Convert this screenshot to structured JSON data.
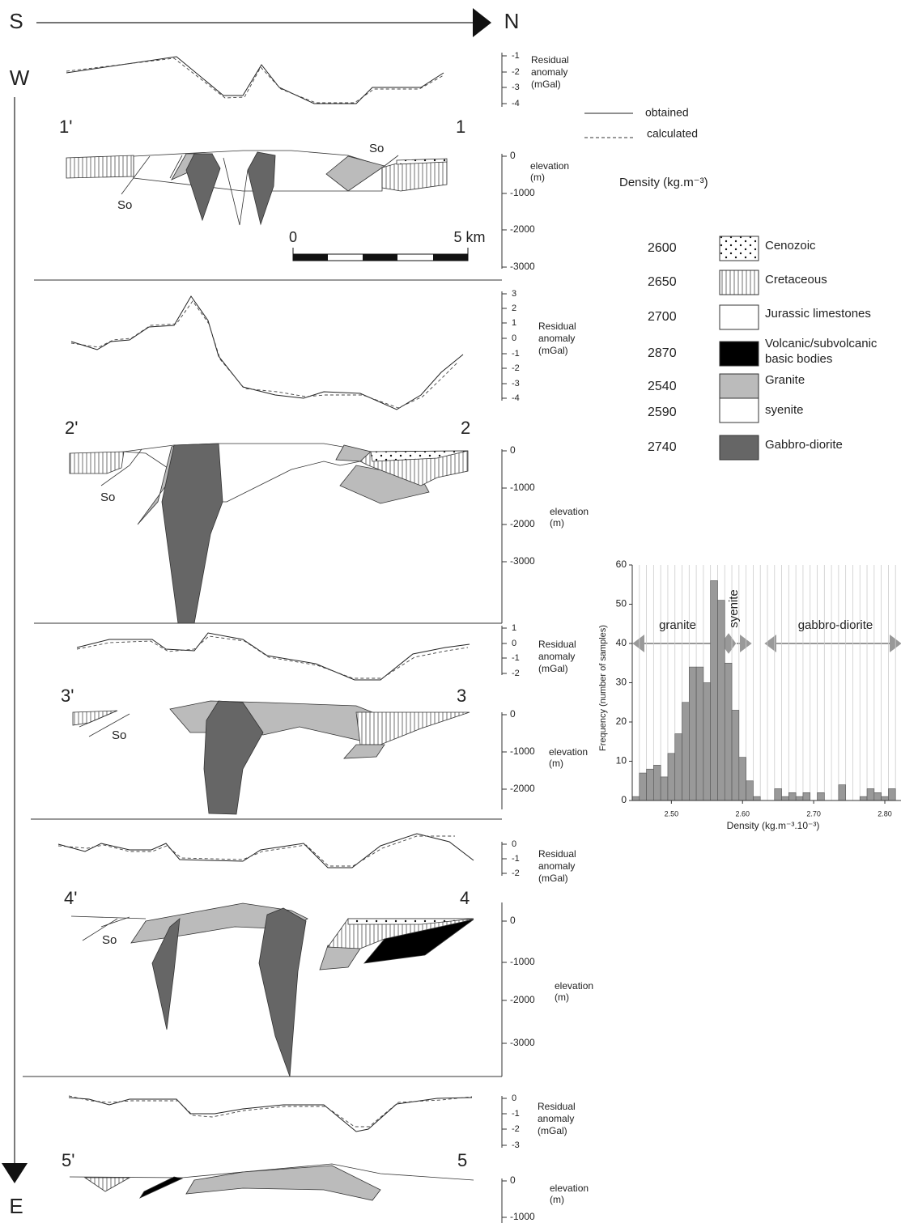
{
  "direction": {
    "top_start": "S",
    "top_end": "N",
    "side_start": "W",
    "side_end": "E"
  },
  "legend": {
    "obtained": "obtained",
    "calculated": "calculated",
    "density_title": "Density (kg.m⁻³)",
    "units": [
      {
        "density": "2600",
        "name": [
          "Cenozoic"
        ]
      },
      {
        "density": "2650",
        "name": [
          "Cretaceous"
        ]
      },
      {
        "density": "2700",
        "name": [
          "Jurassic limestones"
        ]
      },
      {
        "density": "2870",
        "name": [
          "Volcanic/subvolcanic",
          "basic bodies"
        ]
      },
      {
        "density": "2540",
        "name": [
          "Granite"
        ]
      },
      {
        "density": "2590",
        "name": [
          "syenite"
        ]
      },
      {
        "density": "2740",
        "name": [
          "Gabbro-diorite"
        ]
      }
    ]
  },
  "scale": {
    "start": "0",
    "end": "5 km"
  },
  "sections": [
    {
      "start": "1'",
      "end": "1",
      "anomaly_ticks": [
        "-1",
        "-2",
        "-3",
        "-4"
      ],
      "anomaly_label": [
        "Residual",
        "anomaly",
        "(mGal)"
      ],
      "elevation_ticks": [
        "0",
        "-1000",
        "-2000",
        "-3000"
      ],
      "elevation_label": [
        "elevation",
        "(m)"
      ],
      "so": [
        "So",
        "So"
      ]
    },
    {
      "start": "2'",
      "end": "2",
      "anomaly_ticks": [
        "3",
        "2",
        "1",
        "0",
        "-1",
        "-2",
        "-3",
        "-4"
      ],
      "anomaly_label": [
        "Residual",
        "anomaly",
        "(mGal)"
      ],
      "elevation_ticks": [
        "0",
        "-1000",
        "-2000",
        "-3000"
      ],
      "elevation_label": [
        "elevation",
        "(m)"
      ],
      "so": [
        "So"
      ]
    },
    {
      "start": "3'",
      "end": "3",
      "anomaly_ticks": [
        "1",
        "0",
        "-1",
        "-2"
      ],
      "anomaly_label": [
        "Residual",
        "anomaly",
        "(mGal)"
      ],
      "elevation_ticks": [
        "0",
        "-1000",
        "-2000"
      ],
      "elevation_label": [
        "elevation",
        "(m)"
      ],
      "so": [
        "So"
      ]
    },
    {
      "start": "4'",
      "end": "4",
      "anomaly_ticks": [
        "0",
        "-1",
        "-2"
      ],
      "anomaly_label": [
        "Residual",
        "anomaly",
        "(mGal)"
      ],
      "elevation_ticks": [
        "0",
        "-1000",
        "-2000",
        "-3000"
      ],
      "elevation_label": [
        "elevation",
        "(m)"
      ],
      "so": [
        "So"
      ]
    },
    {
      "start": "5'",
      "end": "5",
      "anomaly_ticks": [
        "0",
        "-1",
        "-2",
        "-3"
      ],
      "anomaly_label": [
        "Residual",
        "anomaly",
        "(mGal)"
      ],
      "elevation_ticks": [
        "0",
        "-1000"
      ],
      "elevation_label": [
        "elevation",
        "(m)"
      ],
      "so": []
    }
  ],
  "histogram": {
    "ylabel": "Frequency (number of samples)",
    "xlabel": "Density (kg.m⁻³.10⁻³)",
    "ranges": [
      "granite",
      "syenite",
      "gabbro-diorite"
    ],
    "ylim": [
      0,
      60
    ],
    "yticks": [
      0,
      10,
      20,
      30,
      40,
      50,
      60
    ],
    "xlim": [
      2.445,
      2.815
    ],
    "xticks": [
      {
        "value": 2.5,
        "label": "2.50"
      },
      {
        "value": 2.6,
        "label": "2.60"
      },
      {
        "value": 2.7,
        "label": "2.70"
      },
      {
        "value": 2.8,
        "label": "2.80"
      }
    ],
    "bins": [
      2.445,
      2.455,
      2.465,
      2.475,
      2.485,
      2.495,
      2.505,
      2.515,
      2.525,
      2.535,
      2.545,
      2.555,
      2.565,
      2.575,
      2.585,
      2.595,
      2.605,
      2.615,
      2.625,
      2.635,
      2.645,
      2.655,
      2.665,
      2.675,
      2.685,
      2.695,
      2.705,
      2.715,
      2.725,
      2.735,
      2.745,
      2.755,
      2.765,
      2.775,
      2.785,
      2.795,
      2.805,
      2.815
    ],
    "counts": [
      1,
      7,
      8,
      9,
      6,
      12,
      17,
      25,
      34,
      34,
      30,
      56,
      51,
      35,
      23,
      11,
      5,
      1,
      0,
      0,
      3,
      1,
      2,
      1,
      2,
      0,
      2,
      0,
      0,
      4,
      0,
      0,
      1,
      3,
      2,
      1,
      3
    ]
  }
}
